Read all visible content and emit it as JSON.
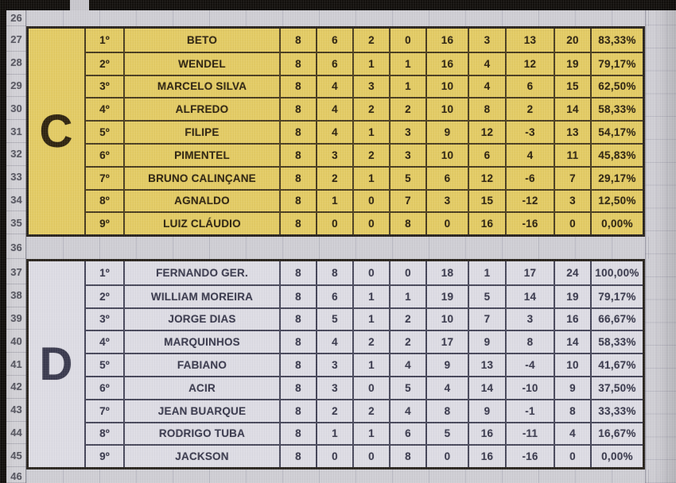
{
  "sheet": {
    "row_numbers": [
      "26",
      "27",
      "28",
      "29",
      "30",
      "31",
      "32",
      "33",
      "34",
      "35",
      "36",
      "37",
      "38",
      "39",
      "40",
      "41",
      "42",
      "43",
      "44",
      "45",
      "46"
    ],
    "groups": [
      {
        "letter": "C",
        "rows": [
          {
            "pos": "1º",
            "name": "BETO",
            "stats": [
              "8",
              "6",
              "2",
              "0",
              "16",
              "3",
              "13",
              "20"
            ],
            "pct": "83,33%"
          },
          {
            "pos": "2º",
            "name": "WENDEL",
            "stats": [
              "8",
              "6",
              "1",
              "1",
              "16",
              "4",
              "12",
              "19"
            ],
            "pct": "79,17%"
          },
          {
            "pos": "3º",
            "name": "MARCELO SILVA",
            "stats": [
              "8",
              "4",
              "3",
              "1",
              "10",
              "4",
              "6",
              "15"
            ],
            "pct": "62,50%"
          },
          {
            "pos": "4º",
            "name": "ALFREDO",
            "stats": [
              "8",
              "4",
              "2",
              "2",
              "10",
              "8",
              "2",
              "14"
            ],
            "pct": "58,33%"
          },
          {
            "pos": "5º",
            "name": "FILIPE",
            "stats": [
              "8",
              "4",
              "1",
              "3",
              "9",
              "12",
              "-3",
              "13"
            ],
            "pct": "54,17%"
          },
          {
            "pos": "6º",
            "name": "PIMENTEL",
            "stats": [
              "8",
              "3",
              "2",
              "3",
              "10",
              "6",
              "4",
              "11"
            ],
            "pct": "45,83%"
          },
          {
            "pos": "7º",
            "name": "BRUNO CALINÇANE",
            "stats": [
              "8",
              "2",
              "1",
              "5",
              "6",
              "12",
              "-6",
              "7"
            ],
            "pct": "29,17%"
          },
          {
            "pos": "8º",
            "name": "AGNALDO",
            "stats": [
              "8",
              "1",
              "0",
              "7",
              "3",
              "15",
              "-12",
              "3"
            ],
            "pct": "12,50%"
          },
          {
            "pos": "9º",
            "name": "LUIZ CLÁUDIO",
            "stats": [
              "8",
              "0",
              "0",
              "8",
              "0",
              "16",
              "-16",
              "0"
            ],
            "pct": "0,00%"
          }
        ]
      },
      {
        "letter": "D",
        "rows": [
          {
            "pos": "1º",
            "name": "FERNANDO GER.",
            "stats": [
              "8",
              "8",
              "0",
              "0",
              "18",
              "1",
              "17",
              "24"
            ],
            "pct": "100,00%"
          },
          {
            "pos": "2º",
            "name": "WILLIAM MOREIRA",
            "stats": [
              "8",
              "6",
              "1",
              "1",
              "19",
              "5",
              "14",
              "19"
            ],
            "pct": "79,17%"
          },
          {
            "pos": "3º",
            "name": "JORGE DIAS",
            "stats": [
              "8",
              "5",
              "1",
              "2",
              "10",
              "7",
              "3",
              "16"
            ],
            "pct": "66,67%"
          },
          {
            "pos": "4º",
            "name": "MARQUINHOS",
            "stats": [
              "8",
              "4",
              "2",
              "2",
              "17",
              "9",
              "8",
              "14"
            ],
            "pct": "58,33%"
          },
          {
            "pos": "5º",
            "name": "FABIANO",
            "stats": [
              "8",
              "3",
              "1",
              "4",
              "9",
              "13",
              "-4",
              "10"
            ],
            "pct": "41,67%"
          },
          {
            "pos": "6º",
            "name": "ACIR",
            "stats": [
              "8",
              "3",
              "0",
              "5",
              "4",
              "14",
              "-10",
              "9"
            ],
            "pct": "37,50%"
          },
          {
            "pos": "7º",
            "name": "JEAN BUARQUE",
            "stats": [
              "8",
              "2",
              "2",
              "4",
              "8",
              "9",
              "-1",
              "8"
            ],
            "pct": "33,33%"
          },
          {
            "pos": "8º",
            "name": "RODRIGO TUBA",
            "stats": [
              "8",
              "1",
              "1",
              "6",
              "5",
              "16",
              "-11",
              "4"
            ],
            "pct": "16,67%"
          },
          {
            "pos": "9º",
            "name": "JACKSON",
            "stats": [
              "8",
              "0",
              "0",
              "8",
              "0",
              "16",
              "-16",
              "0"
            ],
            "pct": "0,00%"
          }
        ]
      }
    ]
  },
  "colors": {
    "group_c_bg": "#e3cb64",
    "group_c_text": "#2f2410",
    "group_c_border": "#4a3d20",
    "group_d_bg": "#dddce4",
    "group_d_text": "#3a3a4e",
    "group_d_border": "#47475a",
    "outer_border": "#2b2620",
    "sheet_bg": "#cfced4",
    "row_header_bg": "#d2d1d6",
    "row_header_text": "#55555f",
    "bezel": "#120f0c"
  }
}
